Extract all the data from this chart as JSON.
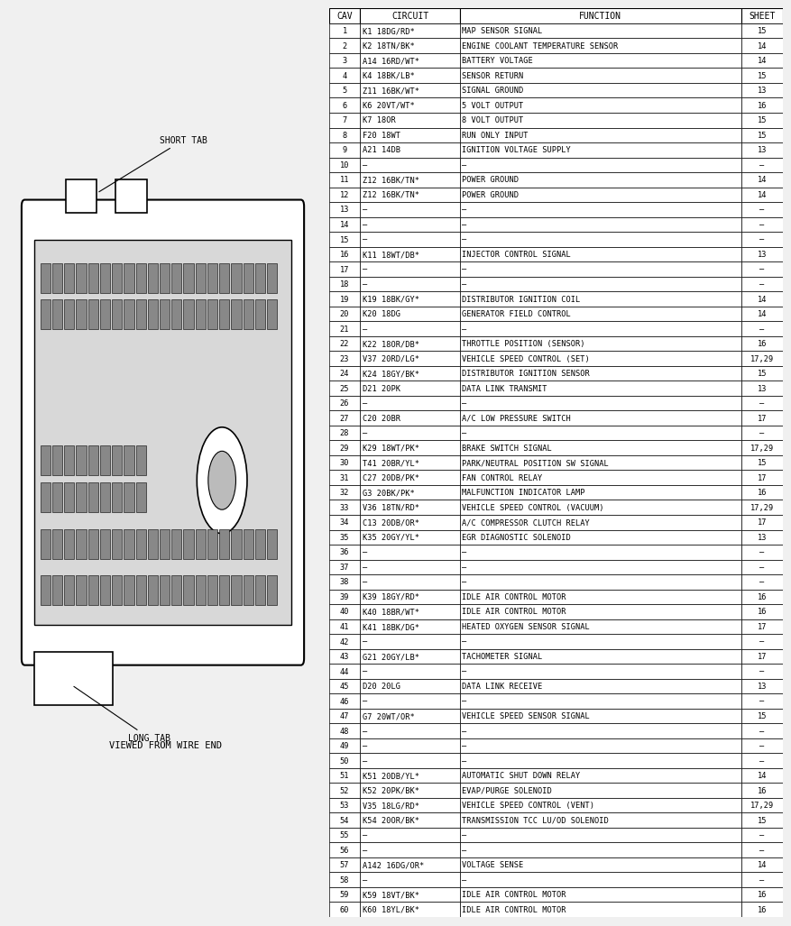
{
  "header": [
    "CAV",
    "CIRCUIT",
    "FUNCTION",
    "SHEET"
  ],
  "rows": [
    [
      "1",
      "K1 18DG/RD*",
      "MAP SENSOR SIGNAL",
      "15"
    ],
    [
      "2",
      "K2 18TN/BK*",
      "ENGINE COOLANT TEMPERATURE SENSOR",
      "14"
    ],
    [
      "3",
      "A14 16RD/WT*",
      "BATTERY VOLTAGE",
      "14"
    ],
    [
      "4",
      "K4 18BK/LB*",
      "SENSOR RETURN",
      "15"
    ],
    [
      "5",
      "Z11 16BK/WT*",
      "SIGNAL GROUND",
      "13"
    ],
    [
      "6",
      "K6 20VT/WT*",
      "5 VOLT OUTPUT",
      "16"
    ],
    [
      "7",
      "K7 18OR",
      "8 VOLT OUTPUT",
      "15"
    ],
    [
      "8",
      "F20 18WT",
      "RUN ONLY INPUT",
      "15"
    ],
    [
      "9",
      "A21 14DB",
      "IGNITION VOLTAGE SUPPLY",
      "13"
    ],
    [
      "10",
      "—",
      "—",
      "—"
    ],
    [
      "11",
      "Z12 16BK/TN*",
      "POWER GROUND",
      "14"
    ],
    [
      "12",
      "Z12 16BK/TN*",
      "POWER GROUND",
      "14"
    ],
    [
      "13",
      "—",
      "—",
      "—"
    ],
    [
      "14",
      "—",
      "—",
      "—"
    ],
    [
      "15",
      "—",
      "—",
      "—"
    ],
    [
      "16",
      "K11 18WT/DB*",
      "INJECTOR CONTROL SIGNAL",
      "13"
    ],
    [
      "17",
      "—",
      "—",
      "—"
    ],
    [
      "18",
      "—",
      "—",
      "—"
    ],
    [
      "19",
      "K19 18BK/GY*",
      "DISTRIBUTOR IGNITION COIL",
      "14"
    ],
    [
      "20",
      "K20 18DG",
      "GENERATOR FIELD CONTROL",
      "14"
    ],
    [
      "21",
      "—",
      "—",
      "—"
    ],
    [
      "22",
      "K22 18OR/DB*",
      "THROTTLE POSITION (SENSOR)",
      "16"
    ],
    [
      "23",
      "V37 20RD/LG*",
      "VEHICLE SPEED CONTROL (SET)",
      "17,29"
    ],
    [
      "24",
      "K24 18GY/BK*",
      "DISTRIBUTOR IGNITION SENSOR",
      "15"
    ],
    [
      "25",
      "D21 20PK",
      "DATA LINK TRANSMIT",
      "13"
    ],
    [
      "26",
      "—",
      "—",
      "—"
    ],
    [
      "27",
      "C20 20BR",
      "A/C LOW PRESSURE SWITCH",
      "17"
    ],
    [
      "28",
      "—",
      "—",
      "—"
    ],
    [
      "29",
      "K29 18WT/PK*",
      "BRAKE SWITCH SIGNAL",
      "17,29"
    ],
    [
      "30",
      "T41 20BR/YL*",
      "PARK/NEUTRAL POSITION SW SIGNAL",
      "15"
    ],
    [
      "31",
      "C27 20DB/PK*",
      "FAN CONTROL RELAY",
      "17"
    ],
    [
      "32",
      "G3 20BK/PK*",
      "MALFUNCTION INDICATOR LAMP",
      "16"
    ],
    [
      "33",
      "V36 18TN/RD*",
      "VEHICLE SPEED CONTROL (VACUUM)",
      "17,29"
    ],
    [
      "34",
      "C13 20DB/OR*",
      "A/C COMPRESSOR CLUTCH RELAY",
      "17"
    ],
    [
      "35",
      "K35 20GY/YL*",
      "EGR DIAGNOSTIC SOLENOID",
      "13"
    ],
    [
      "36",
      "—",
      "—",
      "—"
    ],
    [
      "37",
      "—",
      "—",
      "—"
    ],
    [
      "38",
      "—",
      "—",
      "—"
    ],
    [
      "39",
      "K39 18GY/RD*",
      "IDLE AIR CONTROL MOTOR",
      "16"
    ],
    [
      "40",
      "K40 18BR/WT*",
      "IDLE AIR CONTROL MOTOR",
      "16"
    ],
    [
      "41",
      "K41 18BK/DG*",
      "HEATED OXYGEN SENSOR SIGNAL",
      "17"
    ],
    [
      "42",
      "—",
      "—",
      "—"
    ],
    [
      "43",
      "G21 20GY/LB*",
      "TACHOMETER SIGNAL",
      "17"
    ],
    [
      "44",
      "—",
      "—",
      "—"
    ],
    [
      "45",
      "D20 20LG",
      "DATA LINK RECEIVE",
      "13"
    ],
    [
      "46",
      "—",
      "—",
      "—"
    ],
    [
      "47",
      "G7 20WT/OR*",
      "VEHICLE SPEED SENSOR SIGNAL",
      "15"
    ],
    [
      "48",
      "—",
      "—",
      "—"
    ],
    [
      "49",
      "—",
      "—",
      "—"
    ],
    [
      "50",
      "—",
      "—",
      "—"
    ],
    [
      "51",
      "K51 20DB/YL*",
      "AUTOMATIC SHUT DOWN RELAY",
      "14"
    ],
    [
      "52",
      "K52 20PK/BK*",
      "EVAP/PURGE SOLENOID",
      "16"
    ],
    [
      "53",
      "V35 18LG/RD*",
      "VEHICLE SPEED CONTROL (VENT)",
      "17,29"
    ],
    [
      "54",
      "K54 20OR/BK*",
      "TRANSMISSION TCC LU/OD SOLENOID",
      "15"
    ],
    [
      "55",
      "—",
      "—",
      "—"
    ],
    [
      "56",
      "—",
      "—",
      "—"
    ],
    [
      "57",
      "A142 16DG/OR*",
      "VOLTAGE SENSE",
      "14"
    ],
    [
      "58",
      "—",
      "—",
      "—"
    ],
    [
      "59",
      "K59 18VT/BK*",
      "IDLE AIR CONTROL MOTOR",
      "16"
    ],
    [
      "60",
      "K60 18YL/BK*",
      "IDLE AIR CONTROL MOTOR",
      "16"
    ]
  ],
  "bg_color": "#f0f0f0",
  "line_color": "#000000",
  "text_color": "#000000",
  "header_fontsize": 7.0,
  "cell_fontsize": 6.2,
  "connector_label_short": "SHORT TAB",
  "connector_label_long": "LONG TAB",
  "connector_label_view": "VIEWED FROM WIRE END"
}
